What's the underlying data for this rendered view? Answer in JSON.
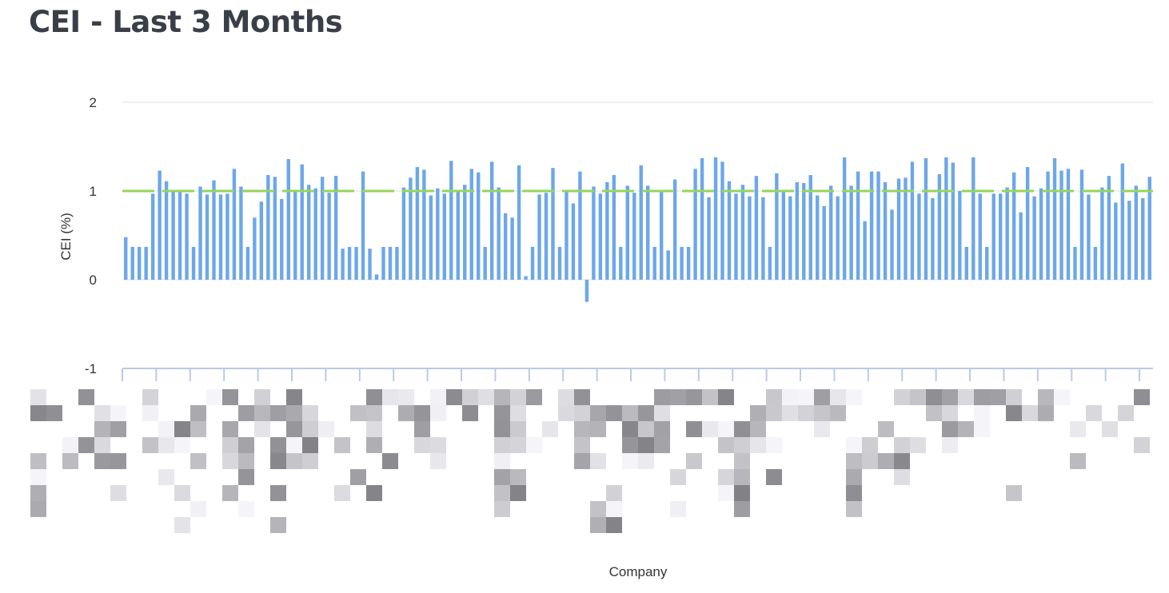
{
  "header": {
    "title": "CEI - Last 3 Months"
  },
  "colors": {
    "bar": "#6da7ea",
    "reference_line": "#96d55b",
    "grid": "#e2e2e2",
    "axis": "#b9cbe6",
    "redaction_dark": "#7f7f86",
    "redaction_light": "#f2f2f4"
  },
  "chart_data": {
    "type": "bar",
    "xlabel": "Company",
    "ylabel": "CEI (%)",
    "ylim": [
      -1,
      2
    ],
    "yticks": [
      "2",
      "1",
      "0",
      "-1"
    ],
    "grid": true,
    "legend": "none",
    "reference_line": {
      "value": 1.0,
      "style": "dashed"
    },
    "category_labels_obscured": true,
    "values": [
      0.48,
      0.37,
      0.37,
      0.37,
      0.97,
      1.23,
      1.11,
      0.99,
      1.01,
      0.97,
      0.37,
      1.05,
      0.96,
      1.12,
      0.96,
      0.97,
      1.25,
      1.05,
      0.37,
      0.7,
      0.88,
      1.18,
      1.16,
      0.91,
      1.36,
      1.0,
      1.3,
      1.07,
      1.03,
      1.16,
      0.98,
      1.17,
      0.35,
      0.37,
      0.37,
      1.22,
      0.35,
      0.06,
      0.37,
      0.37,
      0.37,
      1.04,
      1.15,
      1.27,
      1.24,
      0.95,
      1.03,
      0.97,
      1.34,
      1.0,
      1.07,
      1.25,
      1.21,
      0.37,
      1.33,
      1.04,
      0.75,
      0.7,
      1.29,
      0.04,
      0.37,
      0.96,
      0.98,
      1.26,
      0.37,
      1.0,
      0.86,
      1.22,
      -0.25,
      1.05,
      0.97,
      1.1,
      1.18,
      0.37,
      1.06,
      0.98,
      1.29,
      1.06,
      0.37,
      1.0,
      0.33,
      1.13,
      0.37,
      0.37,
      1.25,
      1.37,
      0.93,
      1.38,
      1.33,
      1.11,
      0.97,
      1.07,
      0.94,
      1.17,
      0.93,
      0.37,
      1.2,
      1.01,
      0.94,
      1.1,
      1.09,
      1.18,
      0.95,
      0.83,
      1.06,
      0.94,
      1.38,
      1.06,
      1.22,
      0.66,
      1.22,
      1.22,
      1.1,
      0.79,
      1.14,
      1.15,
      1.33,
      0.97,
      1.37,
      0.92,
      1.19,
      1.38,
      1.32,
      1.0,
      0.37,
      1.38,
      0.97,
      0.37,
      0.97,
      0.97,
      1.04,
      1.21,
      0.76,
      1.27,
      0.94,
      1.03,
      1.22,
      1.37,
      1.23,
      1.25,
      0.37,
      1.24,
      0.96,
      0.37,
      1.04,
      1.17,
      0.87,
      1.31,
      0.89,
      1.06,
      0.92,
      1.16
    ]
  }
}
